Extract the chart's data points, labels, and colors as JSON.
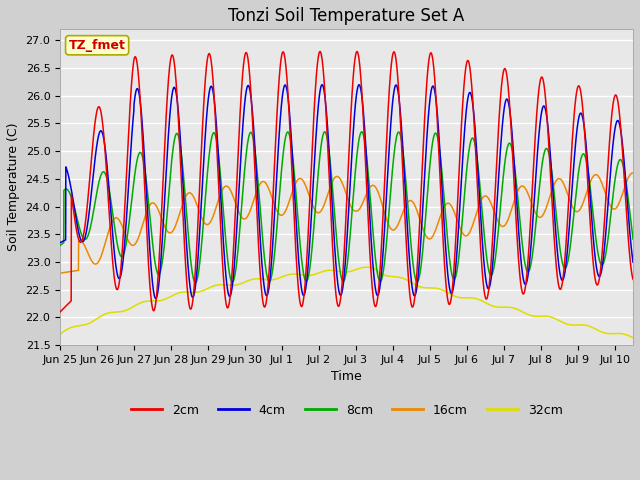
{
  "title": "Tonzi Soil Temperature Set A",
  "xlabel": "Time",
  "ylabel": "Soil Temperature (C)",
  "ylim": [
    21.5,
    27.2
  ],
  "xlim": [
    0,
    15.5
  ],
  "annotation": "TZ_fmet",
  "annotation_color": "#cc0000",
  "annotation_bg": "#ffffcc",
  "annotation_border": "#aaaa00",
  "colors": {
    "2cm": "#ee0000",
    "4cm": "#0000dd",
    "8cm": "#00aa00",
    "16cm": "#ee8800",
    "32cm": "#dddd00"
  },
  "tick_labels": [
    "Jun 25",
    "Jun 26",
    "Jun 27",
    "Jun 28",
    "Jun 29",
    "Jun 30",
    "Jul 1",
    "Jul 2",
    "Jul 3",
    "Jul 4",
    "Jul 5",
    "Jul 6",
    "Jul 7",
    "Jul 8",
    "Jul 9",
    "Jul 10"
  ],
  "fig_bg": "#d0d0d0",
  "plot_bg": "#e8e8e8",
  "grid_color": "#ffffff",
  "title_fontsize": 12,
  "label_fontsize": 9,
  "tick_fontsize": 8
}
